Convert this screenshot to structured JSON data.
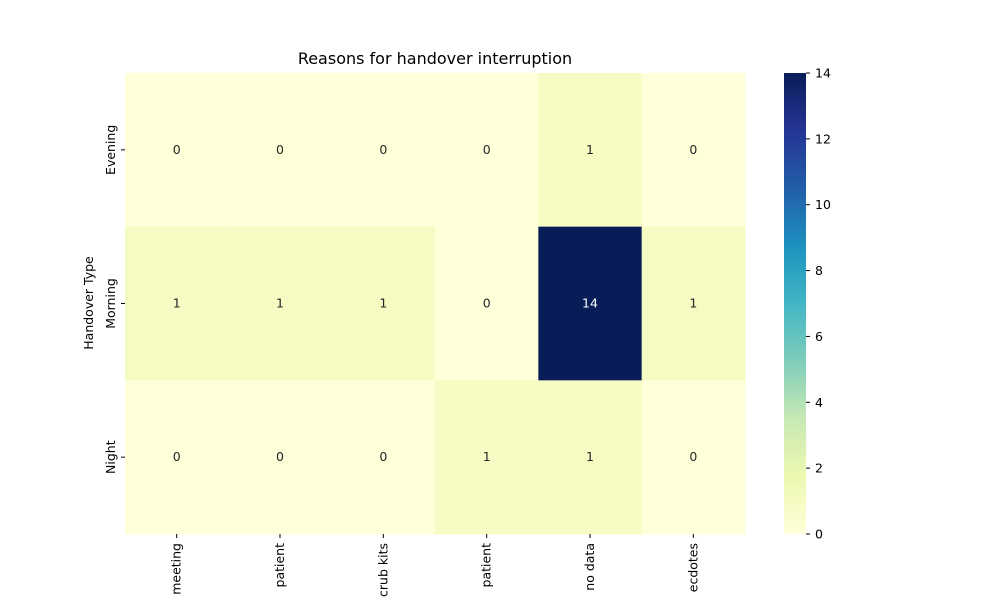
{
  "chart_data": {
    "type": "heatmap",
    "title": "Reasons for handover interruption",
    "ylabel": "Handover Type",
    "xlabel": "",
    "rows": [
      "Evening",
      "Morning",
      "Night"
    ],
    "columns": [
      "meeting",
      "patient",
      "crub kits",
      "patient",
      "no data",
      "ecdotes"
    ],
    "values": [
      [
        0,
        0,
        0,
        0,
        1,
        0
      ],
      [
        1,
        1,
        1,
        0,
        14,
        1
      ],
      [
        0,
        0,
        0,
        1,
        1,
        0
      ]
    ],
    "colorbar": {
      "min": 0,
      "max": 14,
      "ticks": [
        0,
        2,
        4,
        6,
        8,
        10,
        12,
        14
      ],
      "colormap": "YlGnBu"
    },
    "grid": false
  }
}
